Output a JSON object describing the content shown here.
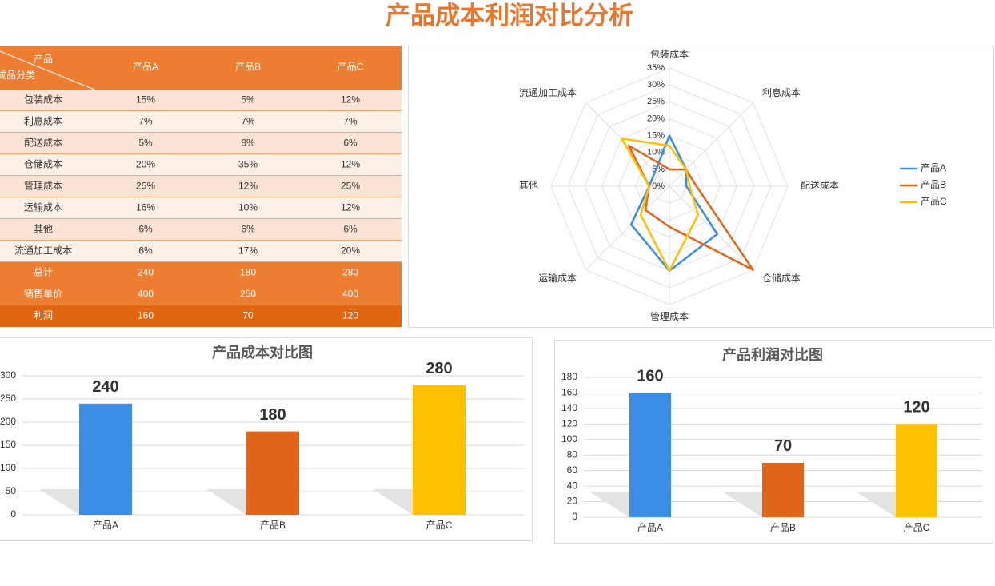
{
  "title": "产品成本利润对比分析",
  "table": {
    "corner_top": "产品",
    "corner_bottom": "成品分类",
    "columns": [
      "产品A",
      "产品B",
      "产品C"
    ],
    "rows": [
      [
        "包装成本",
        "15%",
        "5%",
        "12%"
      ],
      [
        "利息成本",
        "7%",
        "7%",
        "7%"
      ],
      [
        "配送成本",
        "5%",
        "8%",
        "6%"
      ],
      [
        "仓储成本",
        "20%",
        "35%",
        "12%"
      ],
      [
        "管理成本",
        "25%",
        "12%",
        "25%"
      ],
      [
        "运输成本",
        "16%",
        "10%",
        "12%"
      ],
      [
        "其他",
        "6%",
        "6%",
        "6%"
      ],
      [
        "流通加工成本",
        "6%",
        "17%",
        "20%"
      ],
      [
        "总计",
        "240",
        "180",
        "280"
      ],
      [
        "销售单价",
        "400",
        "250",
        "400"
      ],
      [
        "利润",
        "160",
        "70",
        "120"
      ]
    ]
  },
  "chart_data": [
    {
      "type": "radar",
      "categories": [
        "包装成本",
        "利息成本",
        "配送成本",
        "仓储成本",
        "管理成本",
        "运输成本",
        "其他",
        "流通加工成本"
      ],
      "series": [
        {
          "name": "产品A",
          "color": "#3a8ee6",
          "values": [
            15,
            7,
            5,
            20,
            25,
            16,
            6,
            6
          ]
        },
        {
          "name": "产品B",
          "color": "#e0651a",
          "values": [
            5,
            7,
            8,
            35,
            12,
            10,
            6,
            17
          ]
        },
        {
          "name": "产品C",
          "color": "#ffc000",
          "values": [
            12,
            7,
            6,
            12,
            25,
            12,
            6,
            20
          ]
        }
      ],
      "rlim": [
        0,
        35
      ],
      "rticks": [
        {
          "value": 0,
          "label": "0%"
        },
        {
          "value": 5,
          "label": "5%"
        },
        {
          "value": 10,
          "label": "10%"
        },
        {
          "value": 15,
          "label": "15%"
        },
        {
          "value": 20,
          "label": "20%"
        },
        {
          "value": 25,
          "label": "25%"
        },
        {
          "value": 30,
          "label": "30%"
        },
        {
          "value": 35,
          "label": "35%"
        }
      ],
      "legend": "right"
    },
    {
      "type": "bar",
      "title": "产品成本对比图",
      "categories": [
        "产品A",
        "产品B",
        "产品C"
      ],
      "values": [
        240,
        180,
        280
      ],
      "colors": [
        "#3a8ee6",
        "#e0651a",
        "#ffc000"
      ],
      "ylim": [
        0,
        300
      ],
      "yticks": [
        0,
        50,
        100,
        150,
        200,
        250,
        300
      ],
      "grid": true
    },
    {
      "type": "bar",
      "title": "产品利润对比图",
      "categories": [
        "产品A",
        "产品B",
        "产品C"
      ],
      "values": [
        160,
        70,
        120
      ],
      "colors": [
        "#3a8ee6",
        "#e0651a",
        "#ffc000"
      ],
      "ylim": [
        0,
        180
      ],
      "yticks": [
        0,
        20,
        40,
        60,
        80,
        100,
        120,
        140,
        160,
        180
      ],
      "grid": true
    }
  ]
}
